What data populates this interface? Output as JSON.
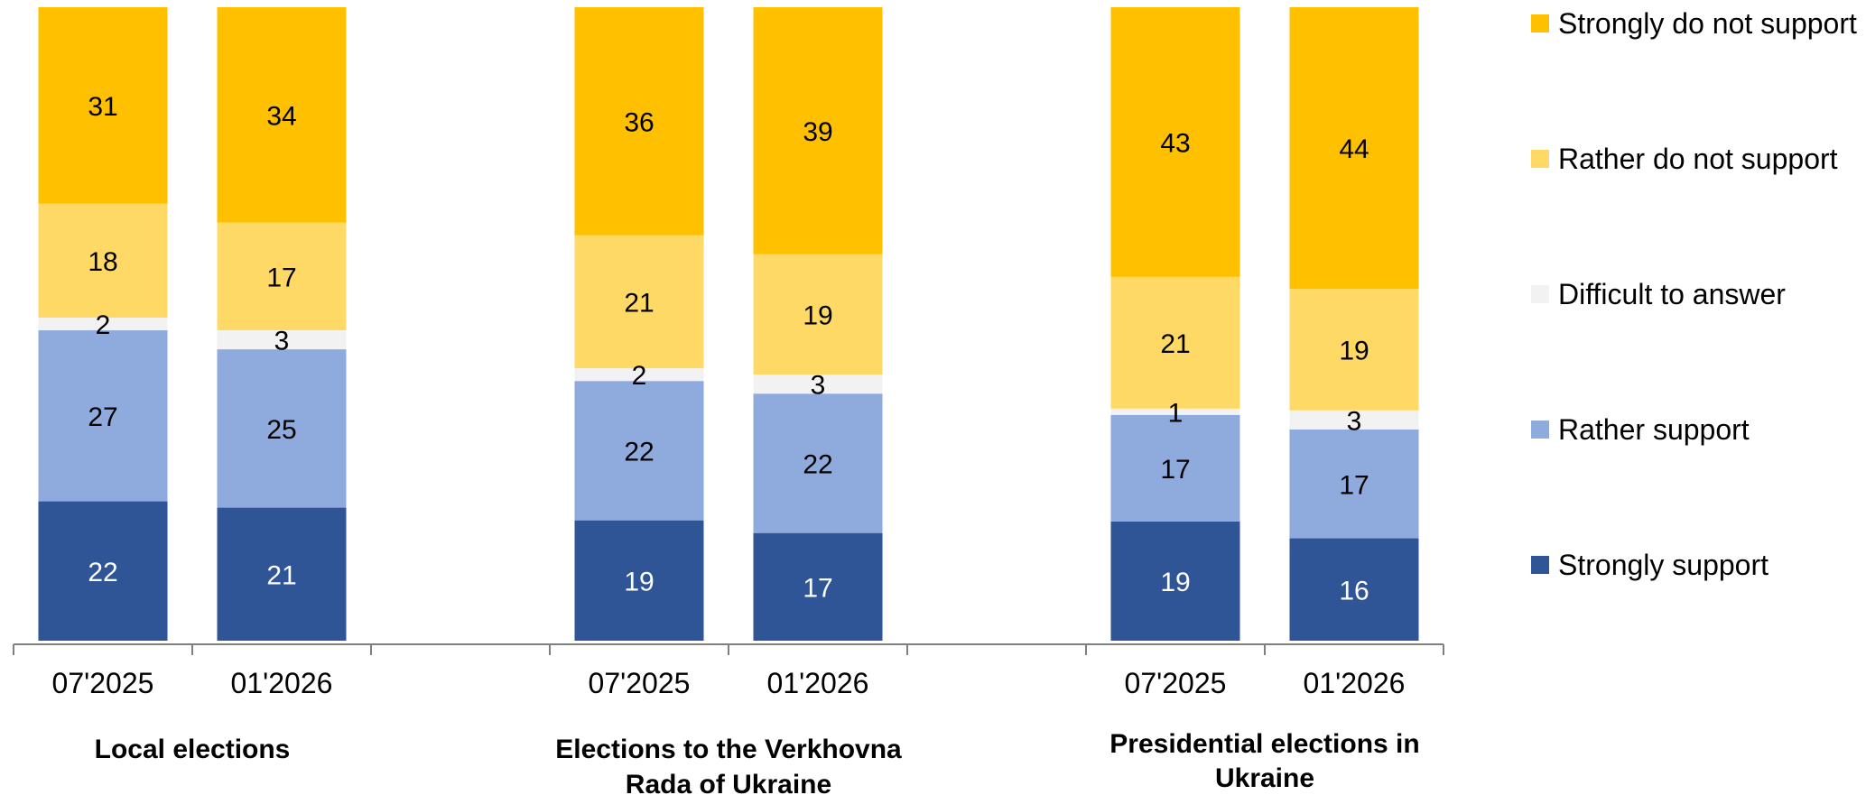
{
  "chart_data": {
    "type": "bar",
    "stacked": true,
    "normalized": true,
    "categories": [
      "07'2025",
      "01'2026",
      "07'2025",
      "01'2026",
      "07'2025",
      "01'2026"
    ],
    "groups": [
      {
        "label": "Local elections",
        "categories": [
          "07'2025",
          "01'2026"
        ]
      },
      {
        "label": "Elections to the Verkhovna Rada of Ukraine",
        "categories": [
          "07'2025",
          "01'2026"
        ]
      },
      {
        "label": "Presidential elections in Ukraine",
        "categories": [
          "07'2025",
          "01'2026"
        ]
      }
    ],
    "series": [
      {
        "name": "Strongly support",
        "color": "#2f5597",
        "label_color": "#ffffff",
        "values": [
          22,
          21,
          19,
          17,
          19,
          16
        ]
      },
      {
        "name": "Rather support",
        "color": "#8faadc",
        "label_color": "#000000",
        "values": [
          27,
          25,
          22,
          22,
          17,
          17
        ]
      },
      {
        "name": "Difficult to answer",
        "color": "#f2f2f2",
        "label_color": "#000000",
        "values": [
          2,
          3,
          2,
          3,
          1,
          3
        ]
      },
      {
        "name": "Rather do not support",
        "color": "#ffd966",
        "label_color": "#000000",
        "values": [
          18,
          17,
          21,
          19,
          21,
          19
        ]
      },
      {
        "name": "Strongly do not support",
        "color": "#ffc000",
        "label_color": "#000000",
        "values": [
          31,
          34,
          36,
          39,
          43,
          44
        ]
      }
    ],
    "legend": {
      "position": "right",
      "order": [
        "Strongly do not support",
        "Rather do not support",
        "Difficult to answer",
        "Rather support",
        "Strongly support"
      ]
    },
    "title": "",
    "xlabel": "",
    "ylabel": "",
    "grid": false,
    "colors": {
      "axis": "#808080"
    }
  }
}
